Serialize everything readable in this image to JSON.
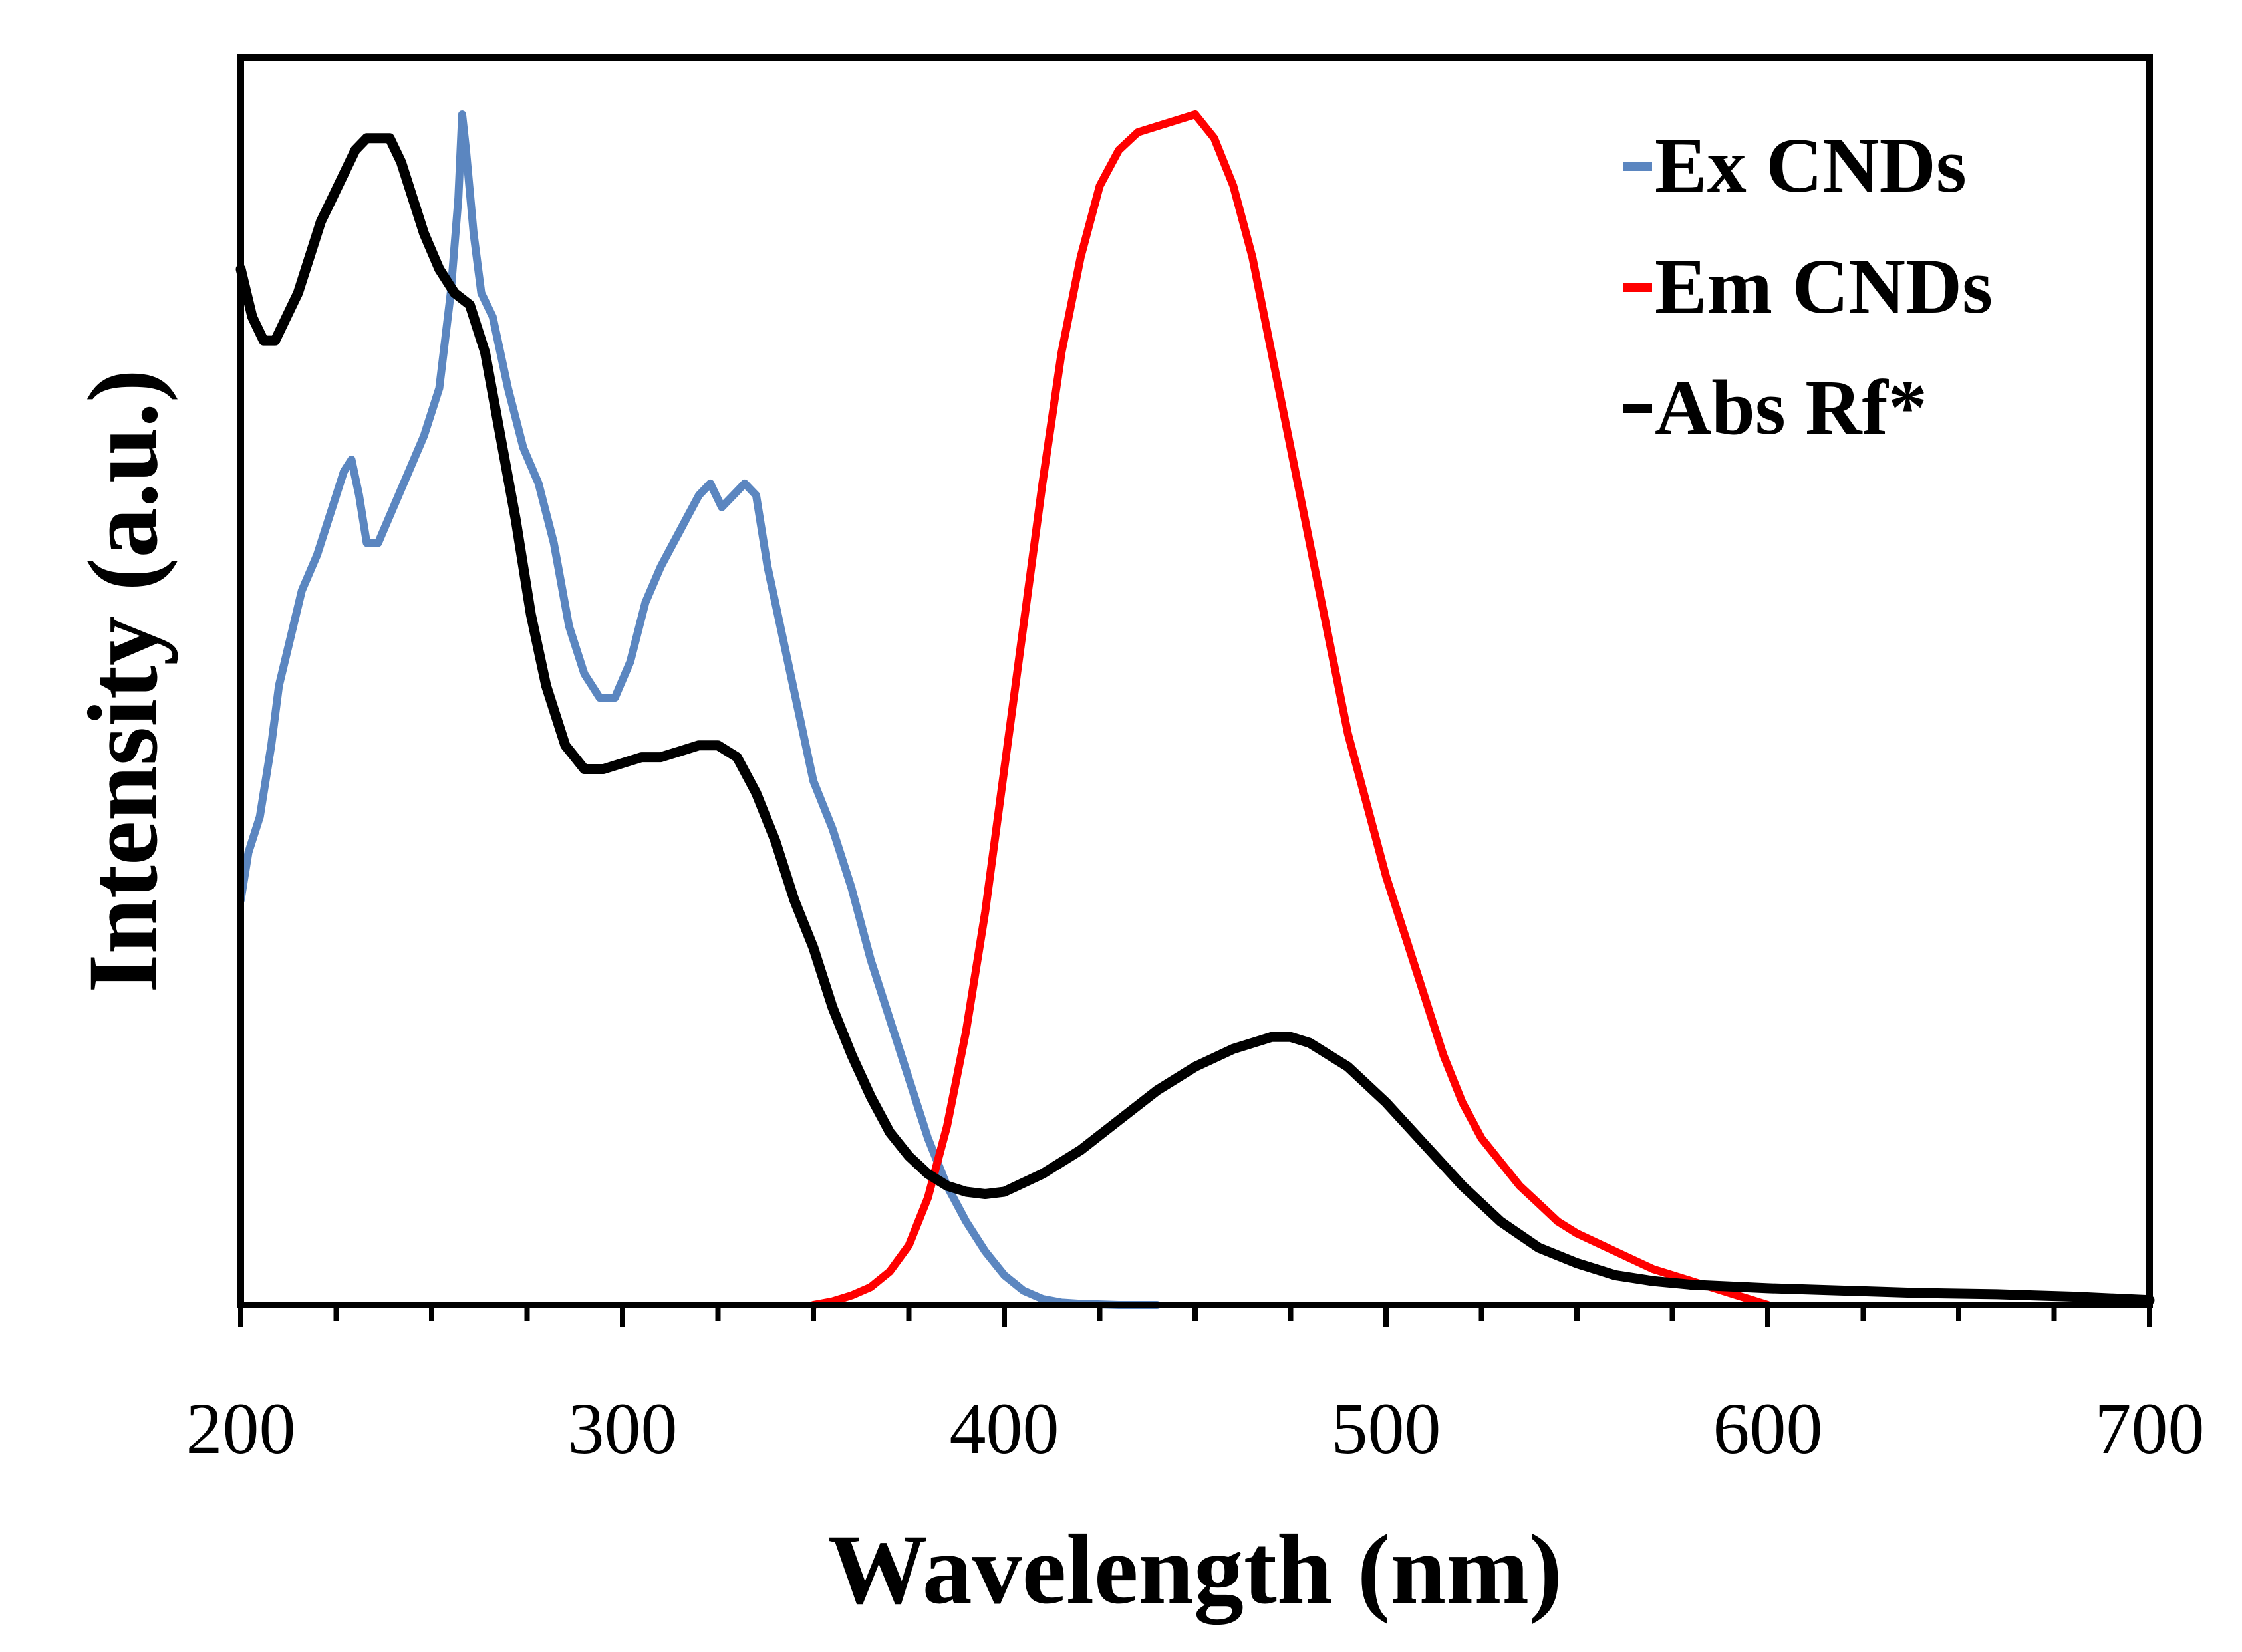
{
  "chart_data": {
    "type": "line",
    "title": "",
    "xlabel": "Wavelength (nm)",
    "ylabel": "Intensity (a.u.)",
    "xlim": [
      200,
      700
    ],
    "ylim": [
      0,
      1
    ],
    "x_ticks": [
      200,
      300,
      400,
      500,
      600,
      700
    ],
    "x_tick_labels": [
      "200",
      "300",
      "400",
      "500",
      "600",
      "700"
    ],
    "minor_tick_step": 25,
    "y_tick_labels_shown": false,
    "grid": false,
    "legend_position": "top-right",
    "series": [
      {
        "name": "Ex  CNDs",
        "color": "#5b86c0",
        "x": [
          200,
          202,
          205,
          208,
          210,
          213,
          216,
          220,
          224,
          227,
          229,
          231,
          233,
          236,
          240,
          244,
          248,
          252,
          255,
          257,
          258,
          259,
          261,
          263,
          266,
          270,
          274,
          278,
          282,
          286,
          290,
          294,
          298,
          302,
          306,
          310,
          315,
          320,
          323,
          326,
          329,
          332,
          335,
          338,
          342,
          346,
          350,
          355,
          360,
          365,
          370,
          375,
          380,
          385,
          390,
          395,
          400,
          405,
          410,
          415,
          420,
          430,
          440
        ],
        "y": [
          0.34,
          0.38,
          0.41,
          0.47,
          0.52,
          0.56,
          0.6,
          0.63,
          0.67,
          0.7,
          0.71,
          0.68,
          0.64,
          0.64,
          0.67,
          0.7,
          0.73,
          0.77,
          0.85,
          0.93,
          1.0,
          0.97,
          0.9,
          0.85,
          0.83,
          0.77,
          0.72,
          0.69,
          0.64,
          0.57,
          0.53,
          0.51,
          0.51,
          0.54,
          0.59,
          0.62,
          0.65,
          0.68,
          0.69,
          0.67,
          0.68,
          0.69,
          0.68,
          0.62,
          0.56,
          0.5,
          0.44,
          0.4,
          0.35,
          0.29,
          0.24,
          0.19,
          0.14,
          0.1,
          0.07,
          0.045,
          0.025,
          0.012,
          0.005,
          0.002,
          0.001,
          0.0,
          0.0
        ]
      },
      {
        "name": "Em CNDs",
        "color": "#ff0000",
        "x": [
          350,
          355,
          360,
          365,
          370,
          375,
          380,
          385,
          390,
          395,
          400,
          405,
          410,
          415,
          420,
          425,
          430,
          435,
          440,
          445,
          450,
          455,
          460,
          465,
          470,
          475,
          480,
          485,
          490,
          495,
          500,
          505,
          510,
          515,
          520,
          525,
          530,
          535,
          540,
          545,
          550,
          560,
          570,
          580,
          590,
          600
        ],
        "y": [
          0.0,
          0.003,
          0.008,
          0.015,
          0.028,
          0.05,
          0.09,
          0.15,
          0.23,
          0.33,
          0.45,
          0.57,
          0.69,
          0.8,
          0.88,
          0.94,
          0.97,
          0.985,
          0.99,
          0.995,
          1.0,
          0.98,
          0.94,
          0.88,
          0.8,
          0.72,
          0.64,
          0.56,
          0.48,
          0.42,
          0.36,
          0.31,
          0.26,
          0.21,
          0.17,
          0.14,
          0.12,
          0.1,
          0.085,
          0.07,
          0.06,
          0.045,
          0.03,
          0.02,
          0.01,
          0.0
        ]
      },
      {
        "name": "Abs Rf*",
        "color": "#000000",
        "x": [
          200,
          203,
          206,
          209,
          212,
          215,
          218,
          221,
          224,
          227,
          230,
          233,
          236,
          239,
          242,
          245,
          248,
          252,
          256,
          260,
          264,
          268,
          272,
          276,
          280,
          285,
          290,
          295,
          300,
          305,
          310,
          315,
          320,
          325,
          330,
          335,
          340,
          345,
          350,
          355,
          360,
          365,
          370,
          375,
          380,
          385,
          390,
          395,
          400,
          410,
          420,
          430,
          440,
          450,
          460,
          470,
          475,
          480,
          490,
          500,
          510,
          520,
          530,
          540,
          550,
          560,
          570,
          580,
          600,
          620,
          640,
          660,
          680,
          700
        ],
        "y": [
          0.87,
          0.83,
          0.81,
          0.81,
          0.83,
          0.85,
          0.88,
          0.91,
          0.93,
          0.95,
          0.97,
          0.98,
          0.98,
          0.98,
          0.96,
          0.93,
          0.9,
          0.87,
          0.85,
          0.84,
          0.8,
          0.73,
          0.66,
          0.58,
          0.52,
          0.47,
          0.45,
          0.45,
          0.455,
          0.46,
          0.46,
          0.465,
          0.47,
          0.47,
          0.46,
          0.43,
          0.39,
          0.34,
          0.3,
          0.25,
          0.21,
          0.175,
          0.145,
          0.125,
          0.11,
          0.1,
          0.095,
          0.093,
          0.095,
          0.11,
          0.13,
          0.155,
          0.18,
          0.2,
          0.215,
          0.225,
          0.225,
          0.22,
          0.2,
          0.17,
          0.135,
          0.1,
          0.07,
          0.048,
          0.035,
          0.025,
          0.02,
          0.017,
          0.014,
          0.012,
          0.01,
          0.009,
          0.007,
          0.004
        ]
      }
    ]
  }
}
